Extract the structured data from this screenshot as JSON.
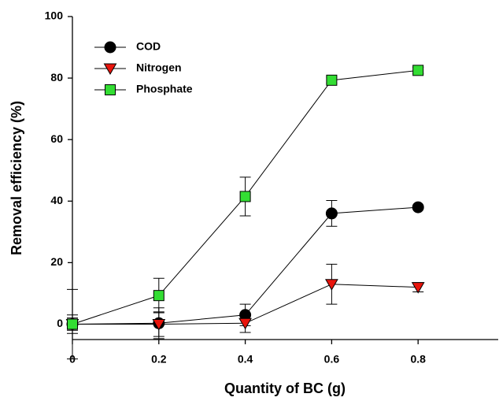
{
  "chart_data": {
    "type": "line",
    "xlabel": "Quantity of BC (g)",
    "ylabel": "Removal efficiency (%)",
    "x": [
      0,
      0.2,
      0.4,
      0.6,
      0.8
    ],
    "series": [
      {
        "name": "COD",
        "color": "#000000",
        "marker": "circle",
        "values": [
          0,
          0.3,
          3,
          36,
          38
        ],
        "errors": [
          3,
          5,
          3.5,
          4.2,
          0.5
        ]
      },
      {
        "name": "Nitrogen",
        "color": "#e8140c",
        "marker": "triangle-down",
        "values": [
          0,
          0,
          0.3,
          13,
          12
        ],
        "errors": [
          11.3,
          4,
          3,
          6.5,
          1.5
        ]
      },
      {
        "name": "Phosphate",
        "color": "#33dd33",
        "marker": "square",
        "values": [
          0,
          9.3,
          41.5,
          79.3,
          82.5
        ],
        "errors": [
          2,
          5.6,
          6.3,
          1,
          1
        ]
      }
    ],
    "xlim": [
      0,
      1
    ],
    "xticks": [
      0,
      0.2,
      0.4,
      0.6,
      0.8
    ],
    "ylim": [
      -5,
      100
    ],
    "yticks": [
      0,
      20,
      40,
      60,
      80,
      100
    ],
    "legend": "upper left",
    "grid": false
  }
}
